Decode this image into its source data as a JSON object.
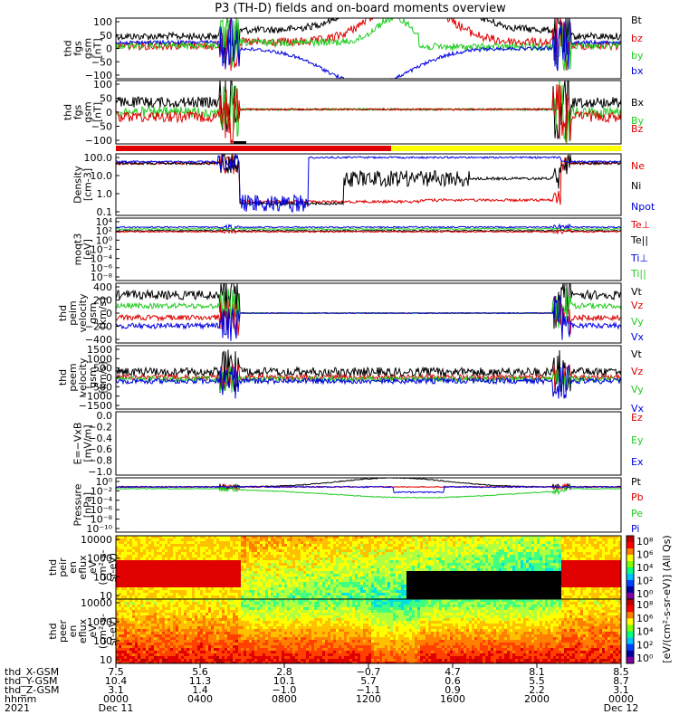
{
  "title": "P3 (TH-D) fields and on-board moments overview",
  "colors": {
    "black": "#000000",
    "red": "#e00000",
    "green": "#22cc22",
    "blue": "#0000e0",
    "yellow": "#ffff00"
  },
  "panels": [
    {
      "id": "fgs",
      "ylabel": [
        "thd",
        "fgs",
        "gsm",
        "[nT]"
      ],
      "ticks": [
        "100",
        "50",
        "0",
        "−50",
        "−100"
      ],
      "legend": [
        {
          "text": "Bt",
          "color": "#000000"
        },
        {
          "text": "bz",
          "color": "#e00000"
        },
        {
          "text": "by",
          "color": "#22cc22"
        },
        {
          "text": "bx",
          "color": "#0000e0"
        }
      ]
    },
    {
      "id": "fgs_dsl",
      "ylabel": [
        "thd",
        "fgs",
        "gsm",
        "[nT]"
      ],
      "ticks": [
        "100",
        "50",
        "0",
        "−50",
        "−100"
      ],
      "legend": [
        {
          "text": "Bx",
          "color": "#000000"
        },
        {
          "text": "By",
          "color": "#22cc22"
        },
        {
          "text": "Bz",
          "color": "#e00000"
        }
      ]
    },
    {
      "id": "density",
      "ylabel": [
        "Density",
        "[cm-3]"
      ],
      "ticks": [
        "100.0",
        "10.0",
        "1.0",
        "0.1"
      ],
      "legend": [
        {
          "text": "Ne",
          "color": "#e00000"
        },
        {
          "text": "Ni",
          "color": "#000000"
        },
        {
          "text": "Npot",
          "color": "#0000e0"
        }
      ]
    },
    {
      "id": "temp",
      "ylabel": [
        "moqt3",
        "[eV]"
      ],
      "ticks": [
        "10⁴",
        "10²",
        "10⁰",
        "10⁻²",
        "10⁻⁴",
        "10⁻⁶",
        "10⁻⁸"
      ],
      "legend": [
        {
          "text": "Te⊥",
          "color": "#e00000"
        },
        {
          "text": "Te||",
          "color": "#000000"
        },
        {
          "text": "Ti⊥",
          "color": "#0000e0"
        },
        {
          "text": "Ti||",
          "color": "#22cc22"
        }
      ]
    },
    {
      "id": "peim",
      "ylabel": [
        "thd",
        "peim",
        "velocity",
        "gsm",
        "[km/s]"
      ],
      "ticks": [
        "400",
        "200",
        "0",
        "−200",
        "−400"
      ],
      "legend": [
        {
          "text": "Vt",
          "color": "#000000"
        },
        {
          "text": "Vz",
          "color": "#e00000"
        },
        {
          "text": "Vy",
          "color": "#22cc22"
        },
        {
          "text": "Vx",
          "color": "#0000e0"
        }
      ]
    },
    {
      "id": "peem",
      "ylabel": [
        "thd",
        "peem",
        "velocity",
        "gsm",
        "[km/s]"
      ],
      "ticks": [
        "1500",
        "1000",
        "500",
        "0",
        "−500",
        "−1000",
        "−1500"
      ],
      "legend": [
        {
          "text": "Vt",
          "color": "#000000"
        },
        {
          "text": "Vz",
          "color": "#e00000"
        },
        {
          "text": "Vy",
          "color": "#22cc22"
        },
        {
          "text": "Vx",
          "color": "#0000e0"
        }
      ]
    },
    {
      "id": "efield",
      "ylabel": [
        "E=−VxB",
        "[mV/m]"
      ],
      "ticks": [],
      "legend": [
        {
          "text": "Ez",
          "color": "#e00000"
        },
        {
          "text": "Ey",
          "color": "#22cc22"
        },
        {
          "text": "Ex",
          "color": "#0000e0"
        }
      ]
    },
    {
      "id": "pressure",
      "ylabel": [
        "Pressure",
        "[nPa]"
      ],
      "ticks": [
        "10⁰",
        "10⁻²",
        "10⁻⁴",
        "10⁻⁶",
        "10⁻⁸",
        "10⁻¹⁰"
      ],
      "legend": [
        {
          "text": "Pt",
          "color": "#000000"
        },
        {
          "text": "Pb",
          "color": "#e00000"
        },
        {
          "text": "Pe",
          "color": "#22cc22"
        },
        {
          "text": "Pi",
          "color": "#0000e0"
        }
      ]
    },
    {
      "id": "peir",
      "ylabel": [
        "thd",
        "peir",
        "en",
        "eflux",
        "eV",
        "(cm²-s-",
        "sr-eV)"
      ],
      "ticks": [
        "10000",
        "1000",
        "100",
        "10"
      ],
      "legend": []
    },
    {
      "id": "peer",
      "ylabel": [
        "thd",
        "peer",
        "en",
        "eflux",
        "eV",
        "(cm²-s-",
        "sr-eV)"
      ],
      "ticks": [
        "10000",
        "1000",
        "100",
        "10"
      ],
      "legend": []
    }
  ],
  "efield_extra_ticks": [
    "0.0",
    "−0.2",
    "−0.4",
    "−0.6",
    "−0.8",
    "−1.0"
  ],
  "colorbar": {
    "label": "[eV/(cm²-s-sr-eV)] (All Qs)",
    "ticks_top": [
      "10⁸",
      "10⁶",
      "10⁴",
      "10²",
      "10⁰"
    ],
    "ticks_bottom": [
      "10⁸",
      "10⁶",
      "10⁴",
      "10²",
      "10⁰"
    ]
  },
  "ephemeris": {
    "labels": [
      "thd_X-GSM",
      "thd_Y-GSM",
      "thd_Z-GSM",
      "hhmm",
      "2021"
    ],
    "columns": [
      [
        "7.5",
        "10.4",
        "3.1",
        "0000",
        "Dec 11"
      ],
      [
        "5.6",
        "11.3",
        "1.4",
        "0400",
        ""
      ],
      [
        "2.8",
        "10.1",
        "−1.0",
        "0800",
        ""
      ],
      [
        "−0.7",
        "5.7",
        "−1.1",
        "1200",
        ""
      ],
      [
        "4.7",
        "0.6",
        "0.9",
        "1600",
        ""
      ],
      [
        "8.1",
        "5.5",
        "2.2",
        "2000",
        ""
      ],
      [
        "8.5",
        "8.7",
        "3.1",
        "0000",
        "Dec 12"
      ]
    ]
  },
  "chart_data": {
    "type": "line",
    "title": "P3 (TH-D) fields and on-board moments overview",
    "x_label": "hhmm",
    "x": [
      "0000",
      "0400",
      "0800",
      "1200",
      "1600",
      "2000",
      "0000"
    ],
    "x_dates": [
      "Dec 11",
      "",
      "",
      "",
      "",
      "",
      "Dec 12"
    ],
    "panels": [
      {
        "name": "fgs gsm [nT]",
        "ylim": [
          -100,
          100
        ],
        "series": [
          {
            "name": "Bt",
            "values": [
              40,
              50,
              100,
              150,
              70,
              40,
              40
            ]
          },
          {
            "name": "bz",
            "values": [
              10,
              20,
              60,
              100,
              60,
              30,
              10
            ]
          },
          {
            "name": "by",
            "values": [
              10,
              20,
              20,
              0,
              0,
              -10,
              -20
            ]
          },
          {
            "name": "bx",
            "values": [
              20,
              10,
              -50,
              -100,
              -50,
              20,
              20
            ]
          }
        ]
      },
      {
        "name": "fgs gsm [nT]",
        "ylim": [
          -120,
          100
        ],
        "series": [
          {
            "name": "Bx",
            "values": [
              25,
              30,
              0,
              0,
              0,
              30,
              30
            ]
          },
          {
            "name": "By",
            "values": [
              -10,
              -20,
              0,
              0,
              0,
              -20,
              -20
            ]
          },
          {
            "name": "Bz",
            "values": [
              -20,
              -30,
              0,
              0,
              0,
              -20,
              -20
            ]
          }
        ]
      },
      {
        "name": "Density [cm-3]",
        "log": true,
        "ylim": [
          0.1,
          100
        ],
        "series": [
          {
            "name": "Ne",
            "values": [
              50,
              30,
              0.3,
              0.5,
              0.6,
              0.5,
              40
            ]
          },
          {
            "name": "Ni",
            "values": [
              50,
              40,
              0.3,
              8,
              5,
              2,
              50
            ]
          },
          {
            "name": "Npot",
            "values": [
              60,
              60,
              0.3,
              100,
              100,
              20,
              60
            ]
          }
        ]
      },
      {
        "name": "Pressure [nPa]",
        "log": true,
        "ylim": [
          1e-10,
          10
        ],
        "series": [
          {
            "name": "Pt",
            "values": [
              0.5,
              0.6,
              1,
              3,
              1,
              0.8,
              0.6
            ]
          },
          {
            "name": "Pb",
            "values": [
              0.3,
              0.3,
              0.5,
              1,
              0.5,
              0.3,
              0.3
            ]
          },
          {
            "name": "Pe",
            "values": [
              0.2,
              0.2,
              0.01,
              0.005,
              0.01,
              0.02,
              0.2
            ]
          },
          {
            "name": "Pi",
            "values": [
              0.3,
              0.3,
              0.1,
              0.1,
              0.3,
              0.3,
              0.3
            ]
          }
        ]
      }
    ]
  }
}
